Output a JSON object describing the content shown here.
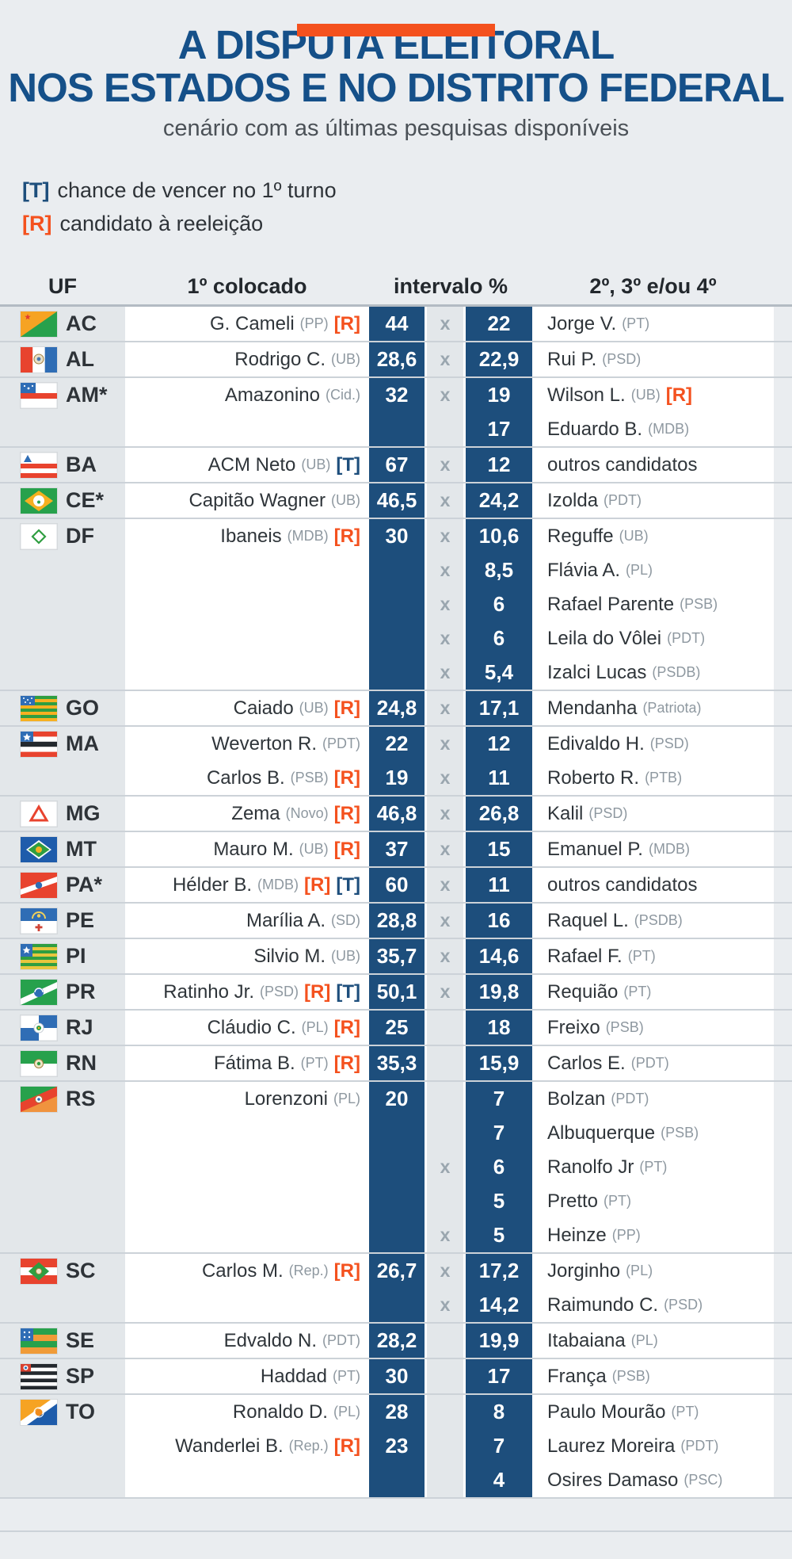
{
  "header": {
    "title_line1": "A DISPUTA ELEITORAL",
    "title_line2": "NOS ESTADOS E NO DISTRITO FEDERAL",
    "subtitle": "cenário com as últimas pesquisas disponíveis"
  },
  "legend": {
    "t_tag": "[T]",
    "t_text": "chance de vencer no 1º turno",
    "r_tag": "[R]",
    "r_text": "candidato à reeleição"
  },
  "colors": {
    "accent_orange": "#f4511e",
    "navy": "#1d4e7c",
    "title_blue": "#155089",
    "background": "#eaedf0"
  },
  "chart_data": {
    "type": "table",
    "title": "A DISPUTA ELEITORAL NOS ESTADOS E NO DISTRITO FEDERAL",
    "subtitle": "cenário com as últimas pesquisas disponíveis",
    "columns": [
      "UF",
      "1º colocado",
      "intervalo %",
      "2º, 3º e/ou 4º"
    ],
    "rows": [
      {
        "uf": "AC",
        "flag": "AC",
        "first": [
          {
            "name": "G. Cameli",
            "party": "(PP)",
            "tags": [
              "R"
            ]
          }
        ],
        "first_values": [
          "44"
        ],
        "others": [
          {
            "x": true,
            "value": "22",
            "name": "Jorge V.",
            "party": "(PT)",
            "tags": []
          }
        ]
      },
      {
        "uf": "AL",
        "flag": "AL",
        "first": [
          {
            "name": "Rodrigo C.",
            "party": "(UB)",
            "tags": []
          }
        ],
        "first_values": [
          "28,6"
        ],
        "others": [
          {
            "x": true,
            "value": "22,9",
            "name": "Rui P.",
            "party": "(PSD)",
            "tags": []
          }
        ]
      },
      {
        "uf": "AM*",
        "flag": "AM",
        "first": [
          {
            "name": "Amazonino",
            "party": "(Cid.)",
            "tags": []
          }
        ],
        "first_values": [
          "32"
        ],
        "others": [
          {
            "x": true,
            "value": "19",
            "name": "Wilson L.",
            "party": "(UB)",
            "tags": [
              "R"
            ]
          },
          {
            "x": false,
            "value": "17",
            "name": "Eduardo B.",
            "party": "(MDB)",
            "tags": []
          }
        ]
      },
      {
        "uf": "BA",
        "flag": "BA",
        "first": [
          {
            "name": "ACM Neto",
            "party": "(UB)",
            "tags": [
              "T"
            ]
          }
        ],
        "first_values": [
          "67"
        ],
        "others": [
          {
            "x": true,
            "value": "12",
            "name": "outros candidatos",
            "party": "",
            "tags": []
          }
        ]
      },
      {
        "uf": "CE*",
        "flag": "CE",
        "first": [
          {
            "name": "Capitão Wagner",
            "party": "(UB)",
            "tags": []
          }
        ],
        "first_values": [
          "46,5"
        ],
        "others": [
          {
            "x": true,
            "value": "24,2",
            "name": "Izolda",
            "party": "(PDT)",
            "tags": []
          }
        ]
      },
      {
        "uf": "DF",
        "flag": "DF",
        "first": [
          {
            "name": "Ibaneis",
            "party": "(MDB)",
            "tags": [
              "R"
            ]
          }
        ],
        "first_values": [
          "30"
        ],
        "others": [
          {
            "x": true,
            "value": "10,6",
            "name": "Reguffe",
            "party": "(UB)",
            "tags": []
          },
          {
            "x": true,
            "value": "8,5",
            "name": "Flávia A.",
            "party": "(PL)",
            "tags": []
          },
          {
            "x": true,
            "value": "6",
            "name": "Rafael Parente",
            "party": "(PSB)",
            "tags": []
          },
          {
            "x": true,
            "value": "6",
            "name": "Leila do Vôlei",
            "party": "(PDT)",
            "tags": []
          },
          {
            "x": true,
            "value": "5,4",
            "name": "Izalci Lucas",
            "party": "(PSDB)",
            "tags": []
          }
        ]
      },
      {
        "uf": "GO",
        "flag": "GO",
        "first": [
          {
            "name": "Caiado",
            "party": "(UB)",
            "tags": [
              "R"
            ]
          }
        ],
        "first_values": [
          "24,8"
        ],
        "others": [
          {
            "x": true,
            "value": "17,1",
            "name": "Mendanha",
            "party": "(Patriota)",
            "tags": []
          }
        ]
      },
      {
        "uf": "MA",
        "flag": "MA",
        "first": [
          {
            "name": "Weverton R.",
            "party": "(PDT)",
            "tags": []
          },
          {
            "name": "Carlos B.",
            "party": "(PSB)",
            "tags": [
              "R"
            ]
          }
        ],
        "first_values": [
          "22",
          "19"
        ],
        "others": [
          {
            "x": true,
            "value": "12",
            "name": "Edivaldo H.",
            "party": "(PSD)",
            "tags": []
          },
          {
            "x": true,
            "value": "11",
            "name": "Roberto R.",
            "party": "(PTB)",
            "tags": []
          }
        ]
      },
      {
        "uf": "MG",
        "flag": "MG",
        "first": [
          {
            "name": "Zema",
            "party": "(Novo)",
            "tags": [
              "R"
            ]
          }
        ],
        "first_values": [
          "46,8"
        ],
        "others": [
          {
            "x": true,
            "value": "26,8",
            "name": "Kalil",
            "party": "(PSD)",
            "tags": []
          }
        ]
      },
      {
        "uf": "MT",
        "flag": "MT",
        "first": [
          {
            "name": "Mauro M.",
            "party": "(UB)",
            "tags": [
              "R"
            ]
          }
        ],
        "first_values": [
          "37"
        ],
        "others": [
          {
            "x": true,
            "value": "15",
            "name": "Emanuel P.",
            "party": "(MDB)",
            "tags": []
          }
        ]
      },
      {
        "uf": "PA*",
        "flag": "PA",
        "first": [
          {
            "name": "Hélder B.",
            "party": "(MDB)",
            "tags": [
              "R",
              "T"
            ]
          }
        ],
        "first_values": [
          "60"
        ],
        "others": [
          {
            "x": true,
            "value": "11",
            "name": "outros candidatos",
            "party": "",
            "tags": []
          }
        ]
      },
      {
        "uf": "PE",
        "flag": "PE",
        "first": [
          {
            "name": "Marília A.",
            "party": "(SD)",
            "tags": []
          }
        ],
        "first_values": [
          "28,8"
        ],
        "others": [
          {
            "x": true,
            "value": "16",
            "name": "Raquel L.",
            "party": "(PSDB)",
            "tags": []
          }
        ]
      },
      {
        "uf": "PI",
        "flag": "PI",
        "first": [
          {
            "name": "Silvio M.",
            "party": "(UB)",
            "tags": []
          }
        ],
        "first_values": [
          "35,7"
        ],
        "others": [
          {
            "x": true,
            "value": "14,6",
            "name": "Rafael F.",
            "party": "(PT)",
            "tags": []
          }
        ]
      },
      {
        "uf": "PR",
        "flag": "PR",
        "first": [
          {
            "name": "Ratinho Jr.",
            "party": "(PSD)",
            "tags": [
              "R",
              "T"
            ]
          }
        ],
        "first_values": [
          "50,1"
        ],
        "others": [
          {
            "x": true,
            "value": "19,8",
            "name": "Requião",
            "party": "(PT)",
            "tags": []
          }
        ]
      },
      {
        "uf": "RJ",
        "flag": "RJ",
        "first": [
          {
            "name": "Cláudio C.",
            "party": "(PL)",
            "tags": [
              "R"
            ]
          }
        ],
        "first_values": [
          "25"
        ],
        "others": [
          {
            "x": false,
            "value": "18",
            "name": "Freixo",
            "party": "(PSB)",
            "tags": []
          }
        ]
      },
      {
        "uf": "RN",
        "flag": "RN",
        "first": [
          {
            "name": "Fátima B.",
            "party": "(PT)",
            "tags": [
              "R"
            ]
          }
        ],
        "first_values": [
          "35,3"
        ],
        "others": [
          {
            "x": false,
            "value": "15,9",
            "name": "Carlos E.",
            "party": "(PDT)",
            "tags": []
          }
        ]
      },
      {
        "uf": "RS",
        "flag": "RS",
        "first": [
          {
            "name": "Lorenzoni",
            "party": "(PL)",
            "tags": []
          }
        ],
        "first_values": [
          "20"
        ],
        "others": [
          {
            "x": false,
            "value": "7",
            "name": "Bolzan",
            "party": "(PDT)",
            "tags": []
          },
          {
            "x": false,
            "value": "7",
            "name": "Albuquerque",
            "party": "(PSB)",
            "tags": []
          },
          {
            "x": true,
            "value": "6",
            "name": "Ranolfo Jr",
            "party": "(PT)",
            "tags": []
          },
          {
            "x": false,
            "value": "5",
            "name": "Pretto",
            "party": "(PT)",
            "tags": []
          },
          {
            "x": true,
            "value": "5",
            "name": "Heinze",
            "party": "(PP)",
            "tags": []
          }
        ]
      },
      {
        "uf": "SC",
        "flag": "SC",
        "first": [
          {
            "name": "Carlos M.",
            "party": "(Rep.)",
            "tags": [
              "R"
            ]
          }
        ],
        "first_values": [
          "26,7"
        ],
        "others": [
          {
            "x": true,
            "value": "17,2",
            "name": "Jorginho",
            "party": "(PL)",
            "tags": []
          },
          {
            "x": true,
            "value": "14,2",
            "name": "Raimundo C.",
            "party": "(PSD)",
            "tags": []
          }
        ]
      },
      {
        "uf": "SE",
        "flag": "SE",
        "first": [
          {
            "name": "Edvaldo N.",
            "party": "(PDT)",
            "tags": []
          }
        ],
        "first_values": [
          "28,2"
        ],
        "others": [
          {
            "x": false,
            "value": "19,9",
            "name": "Itabaiana",
            "party": "(PL)",
            "tags": []
          }
        ]
      },
      {
        "uf": "SP",
        "flag": "SP",
        "first": [
          {
            "name": "Haddad",
            "party": "(PT)",
            "tags": []
          }
        ],
        "first_values": [
          "30"
        ],
        "others": [
          {
            "x": false,
            "value": "17",
            "name": "França",
            "party": "(PSB)",
            "tags": []
          }
        ]
      },
      {
        "uf": "TO",
        "flag": "TO",
        "first": [
          {
            "name": "Ronaldo D.",
            "party": "(PL)",
            "tags": []
          },
          {
            "name": "Wanderlei B.",
            "party": "(Rep.)",
            "tags": [
              "R"
            ]
          }
        ],
        "first_values": [
          "28",
          "23"
        ],
        "others": [
          {
            "x": false,
            "value": "8",
            "name": "Paulo Mourão",
            "party": "(PT)",
            "tags": []
          },
          {
            "x": false,
            "value": "7",
            "name": "Laurez Moreira",
            "party": "(PDT)",
            "tags": []
          },
          {
            "x": false,
            "value": "4",
            "name": "Osires Damaso",
            "party": "(PSC)",
            "tags": []
          }
        ]
      }
    ]
  }
}
